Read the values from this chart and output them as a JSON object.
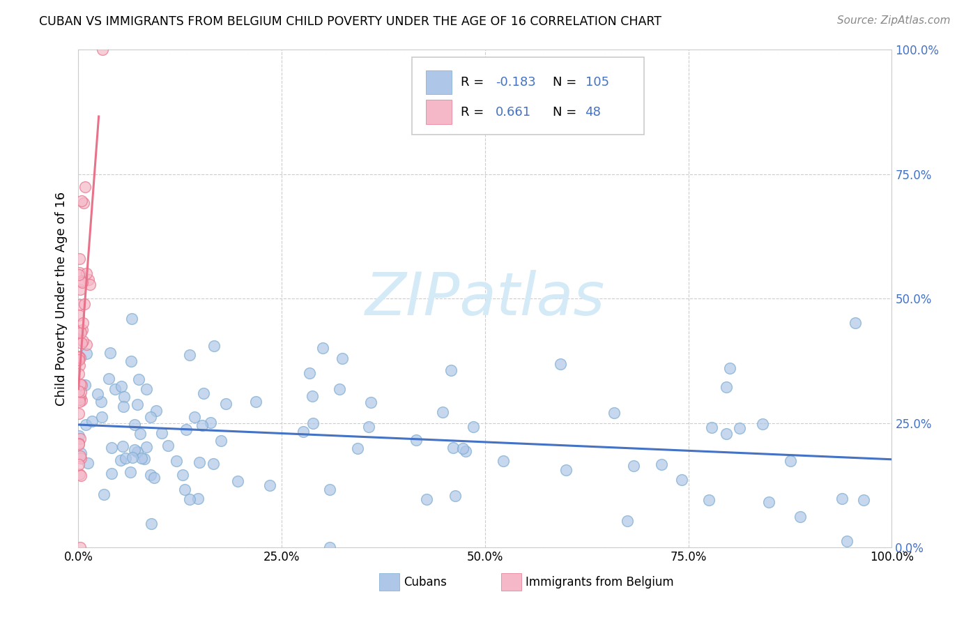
{
  "title": "CUBAN VS IMMIGRANTS FROM BELGIUM CHILD POVERTY UNDER THE AGE OF 16 CORRELATION CHART",
  "source": "Source: ZipAtlas.com",
  "ylabel": "Child Poverty Under the Age of 16",
  "cubans_color": "#aec6e8",
  "cubans_edge_color": "#7aaad0",
  "belgium_color": "#f4b8c8",
  "belgium_edge_color": "#e8728a",
  "cubans_line_color": "#4472c4",
  "belgium_line_color": "#e8728a",
  "right_tick_color": "#4472c4",
  "watermark_color": "#d4eaf7",
  "cubans_R": -0.183,
  "cubans_N": 105,
  "belgium_R": 0.661,
  "belgium_N": 48,
  "xlim": [
    0.0,
    1.0
  ],
  "ylim": [
    0.0,
    1.0
  ]
}
